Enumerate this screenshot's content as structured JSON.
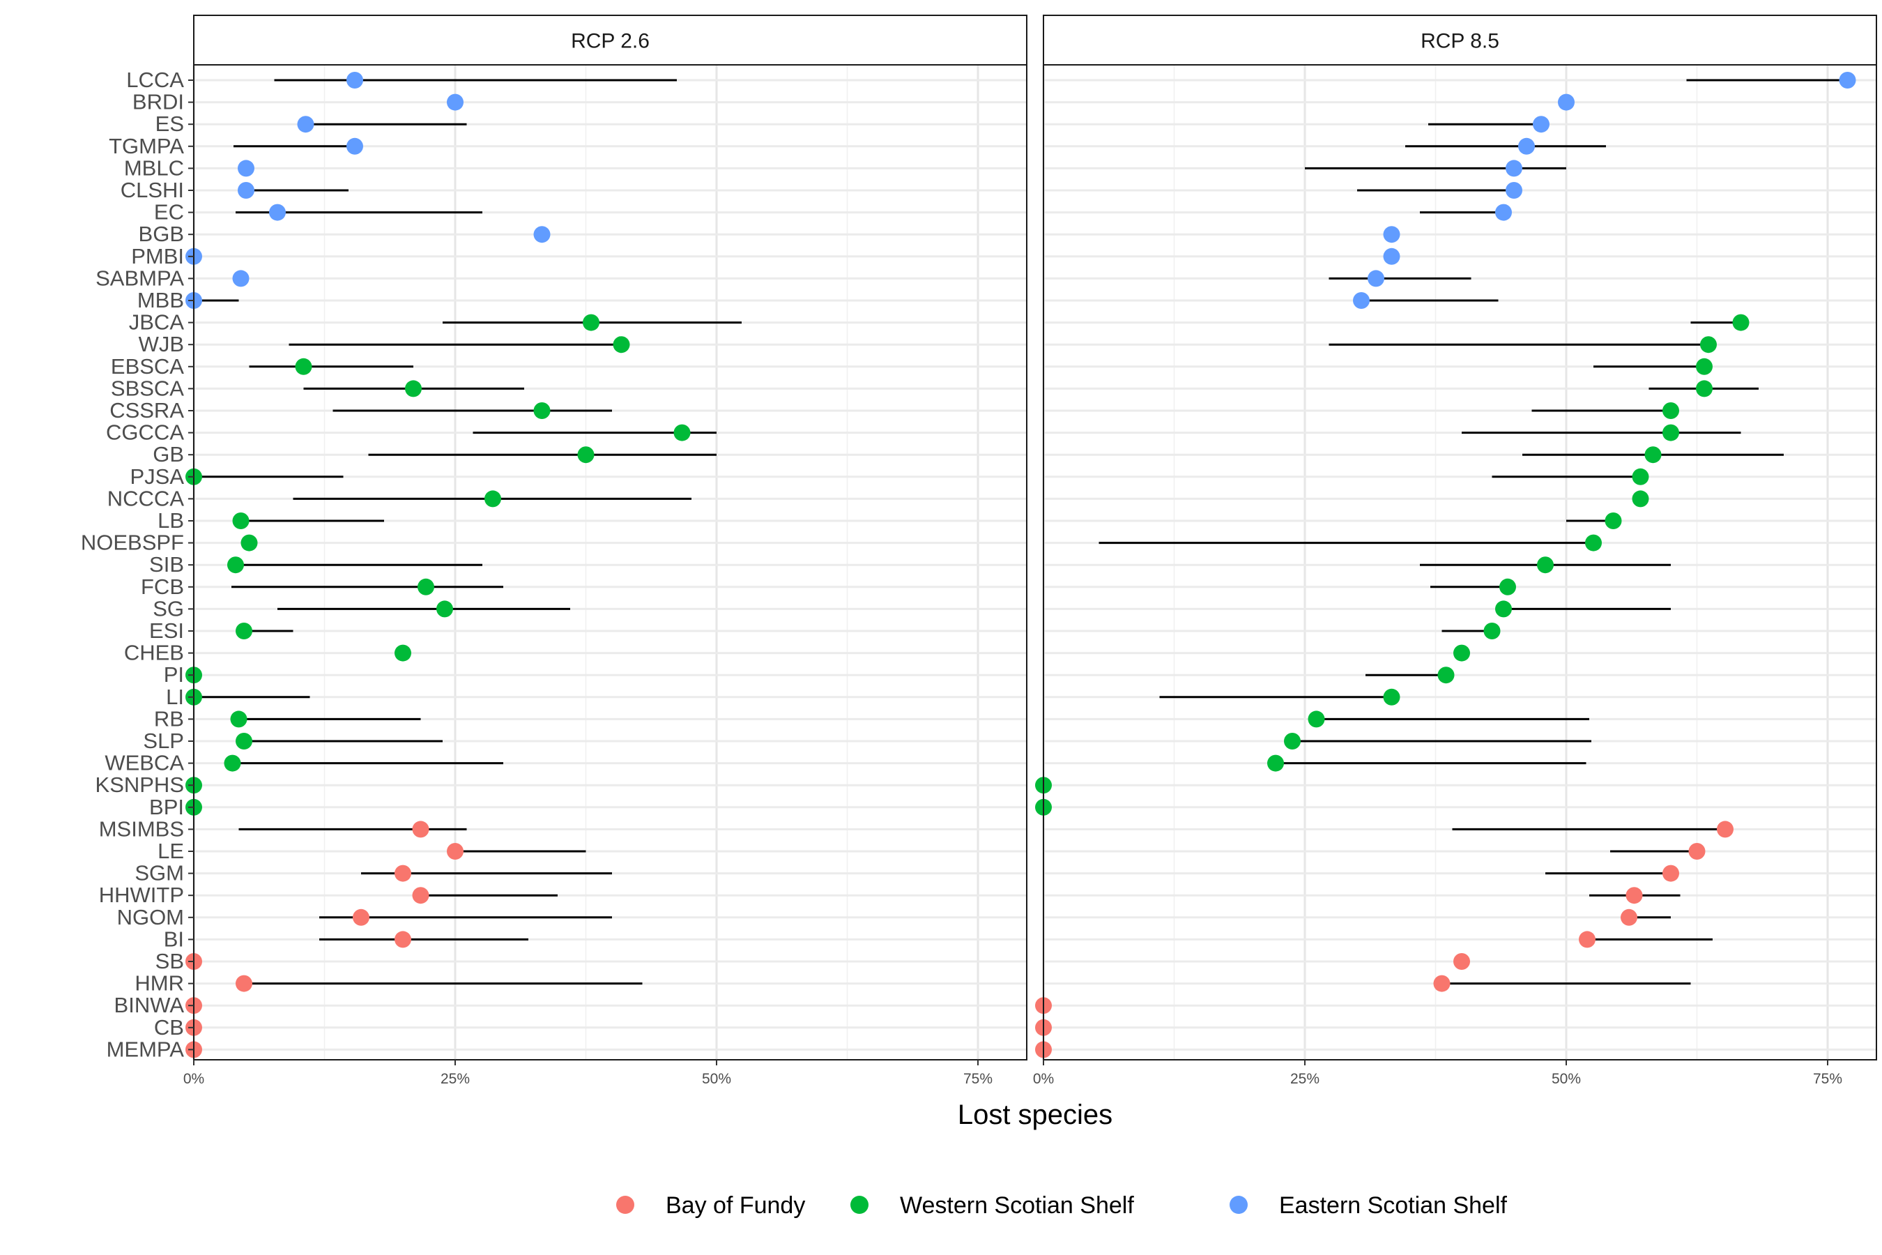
{
  "chart_data": {
    "type": "scatter",
    "subtype": "dot-with-range",
    "xlabel": "Lost species",
    "x_ticks": [
      "0%",
      "25%",
      "50%",
      "75%"
    ],
    "xlim": [
      0,
      80
    ],
    "grid": true,
    "legend_position": "bottom",
    "colors": {
      "Bay of Fundy": "#F8766D",
      "Western Scotian Shelf": "#00BA38",
      "Eastern Scotian Shelf": "#619CFF"
    },
    "legend": [
      {
        "label": "Bay of Fundy",
        "color": "#F8766D"
      },
      {
        "label": "Western Scotian Shelf",
        "color": "#00BA38"
      },
      {
        "label": "Eastern Scotian Shelf",
        "color": "#619CFF"
      }
    ],
    "categories": [
      "LCCA",
      "BRDI",
      "ES",
      "TGMPA",
      "MBLC",
      "CLSHI",
      "EC",
      "BGB",
      "PMBI",
      "SABMPA",
      "MBB",
      "JBCA",
      "WJB",
      "EBSCA",
      "SBSCA",
      "CSSRA",
      "CGCCA",
      "GB",
      "PJSA",
      "NCCCA",
      "LB",
      "NOEBSPF",
      "SIB",
      "FCB",
      "SG",
      "ESI",
      "CHEB",
      "PI",
      "LI",
      "RB",
      "SLP",
      "WEBCA",
      "KSNPHS",
      "BPI",
      "MSIMBS",
      "LE",
      "SGM",
      "HHWITP",
      "NGOM",
      "BI",
      "SB",
      "HMR",
      "BINWA",
      "CB",
      "MEMPA"
    ],
    "region": [
      "Eastern Scotian Shelf",
      "Eastern Scotian Shelf",
      "Eastern Scotian Shelf",
      "Eastern Scotian Shelf",
      "Eastern Scotian Shelf",
      "Eastern Scotian Shelf",
      "Eastern Scotian Shelf",
      "Eastern Scotian Shelf",
      "Eastern Scotian Shelf",
      "Eastern Scotian Shelf",
      "Eastern Scotian Shelf",
      "Western Scotian Shelf",
      "Western Scotian Shelf",
      "Western Scotian Shelf",
      "Western Scotian Shelf",
      "Western Scotian Shelf",
      "Western Scotian Shelf",
      "Western Scotian Shelf",
      "Western Scotian Shelf",
      "Western Scotian Shelf",
      "Western Scotian Shelf",
      "Western Scotian Shelf",
      "Western Scotian Shelf",
      "Western Scotian Shelf",
      "Western Scotian Shelf",
      "Western Scotian Shelf",
      "Western Scotian Shelf",
      "Western Scotian Shelf",
      "Western Scotian Shelf",
      "Western Scotian Shelf",
      "Western Scotian Shelf",
      "Western Scotian Shelf",
      "Western Scotian Shelf",
      "Western Scotian Shelf",
      "Bay of Fundy",
      "Bay of Fundy",
      "Bay of Fundy",
      "Bay of Fundy",
      "Bay of Fundy",
      "Bay of Fundy",
      "Bay of Fundy",
      "Bay of Fundy",
      "Bay of Fundy",
      "Bay of Fundy",
      "Bay of Fundy"
    ],
    "panels": [
      {
        "title": "RCP 2.6",
        "points": [
          15.4,
          25,
          10.7,
          15.4,
          5,
          5,
          8,
          33.3,
          0,
          4.5,
          0,
          38,
          40.9,
          10.5,
          21,
          33.3,
          46.7,
          37.5,
          0,
          28.6,
          4.5,
          5.3,
          4,
          22.2,
          24,
          4.8,
          20,
          0,
          0,
          4.3,
          4.8,
          3.7,
          0,
          0,
          21.7,
          25,
          20,
          21.7,
          16,
          20,
          0,
          4.8,
          0,
          0,
          0
        ],
        "ranges": [
          [
            7.7,
            46.2
          ],
          null,
          [
            10.7,
            26.1
          ],
          [
            3.8,
            15.4
          ],
          null,
          [
            5,
            14.8
          ],
          [
            4,
            27.6
          ],
          null,
          null,
          null,
          [
            0,
            4.3
          ],
          [
            23.8,
            52.4
          ],
          [
            9.1,
            40.9
          ],
          [
            5.3,
            21
          ],
          [
            10.5,
            31.6
          ],
          [
            13.3,
            40
          ],
          [
            26.7,
            50
          ],
          [
            16.7,
            50
          ],
          [
            0,
            14.3
          ],
          [
            9.5,
            47.6
          ],
          [
            4.5,
            18.2
          ],
          null,
          [
            4,
            27.6
          ],
          [
            3.6,
            29.6
          ],
          [
            8,
            36
          ],
          [
            4.8,
            9.5
          ],
          null,
          null,
          [
            0,
            11.1
          ],
          [
            4.3,
            21.7
          ],
          [
            4.8,
            23.8
          ],
          [
            3.7,
            29.6
          ],
          null,
          null,
          [
            4.3,
            26.1
          ],
          [
            25,
            37.5
          ],
          [
            16,
            40
          ],
          [
            21.7,
            34.8
          ],
          [
            12,
            40
          ],
          [
            12,
            32
          ],
          null,
          [
            4.8,
            42.9
          ],
          null,
          null,
          null
        ]
      },
      {
        "title": "RCP 8.5",
        "points": [
          76.9,
          50,
          47.6,
          46.2,
          45,
          45,
          44,
          33.3,
          33.3,
          31.8,
          30.4,
          66.7,
          63.6,
          63.2,
          63.2,
          60,
          60,
          58.3,
          57.1,
          57.1,
          54.5,
          52.6,
          48,
          44.4,
          44,
          42.9,
          40,
          38.5,
          33.3,
          26.1,
          23.8,
          22.2,
          0,
          0,
          65.2,
          62.5,
          60,
          56.5,
          56,
          52,
          40,
          38.1,
          0,
          0,
          0
        ],
        "ranges": [
          [
            61.5,
            76.9
          ],
          null,
          [
            36.8,
            47.6
          ],
          [
            34.6,
            53.8
          ],
          [
            25,
            50
          ],
          [
            30,
            45
          ],
          [
            36,
            44
          ],
          null,
          null,
          [
            27.3,
            40.9
          ],
          [
            30.4,
            43.5
          ],
          [
            61.9,
            66.7
          ],
          [
            27.3,
            63.6
          ],
          [
            52.6,
            63.2
          ],
          [
            57.9,
            68.4
          ],
          [
            46.7,
            60
          ],
          [
            40,
            66.7
          ],
          [
            45.8,
            70.8
          ],
          [
            42.9,
            57.1
          ],
          null,
          [
            50,
            54.5
          ],
          [
            5.3,
            52.6
          ],
          [
            36,
            60
          ],
          [
            37,
            44.4
          ],
          [
            44,
            60
          ],
          [
            38.1,
            42.9
          ],
          null,
          [
            30.8,
            38.5
          ],
          [
            11.1,
            33.3
          ],
          [
            26.1,
            52.2
          ],
          [
            23.8,
            52.4
          ],
          [
            22.2,
            51.9
          ],
          null,
          null,
          [
            39.1,
            65.2
          ],
          [
            54.2,
            62.5
          ],
          [
            48,
            60
          ],
          [
            52.2,
            60.9
          ],
          [
            56,
            60
          ],
          [
            52,
            64
          ],
          null,
          [
            38.1,
            61.9
          ],
          null,
          null,
          null
        ]
      }
    ]
  }
}
